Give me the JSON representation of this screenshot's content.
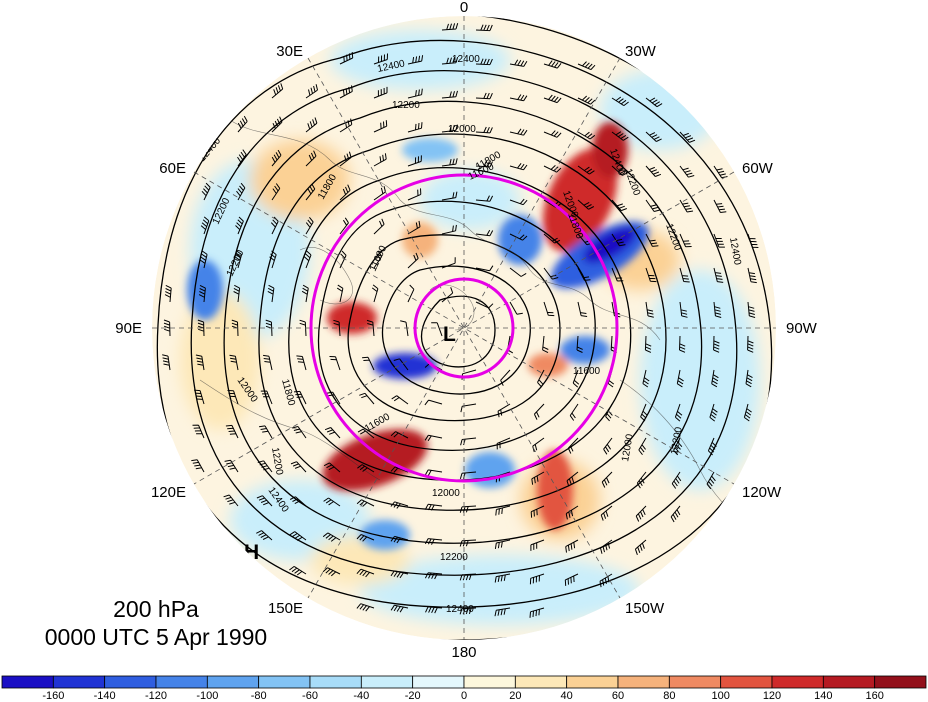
{
  "map": {
    "level_label": "200 hPa",
    "time_label": "0000 UTC 5 Apr 1990",
    "longitude_labels": [
      {
        "key": "lon-0",
        "text": "0"
      },
      {
        "key": "lon-30w",
        "text": "30W"
      },
      {
        "key": "lon-60w",
        "text": "60W"
      },
      {
        "key": "lon-90w",
        "text": "90W"
      },
      {
        "key": "lon-120w",
        "text": "120W"
      },
      {
        "key": "lon-150w",
        "text": "150W"
      },
      {
        "key": "lon-180",
        "text": "180"
      },
      {
        "key": "lon-150e",
        "text": "150E"
      },
      {
        "key": "lon-120e",
        "text": "120E"
      },
      {
        "key": "lon-90e",
        "text": "90E"
      },
      {
        "key": "lon-60e",
        "text": "60E"
      },
      {
        "key": "lon-30e",
        "text": "30E"
      }
    ],
    "contour_labels": [
      {
        "key": "c1",
        "text": "12400"
      },
      {
        "key": "c2",
        "text": "12400"
      },
      {
        "key": "c3",
        "text": "12200"
      },
      {
        "key": "c4",
        "text": "12000"
      },
      {
        "key": "c5",
        "text": "11800"
      },
      {
        "key": "c6",
        "text": "11800"
      },
      {
        "key": "c7",
        "text": "11600"
      },
      {
        "key": "c8",
        "text": "12200"
      },
      {
        "key": "c9",
        "text": "12200"
      },
      {
        "key": "c10",
        "text": "12400"
      },
      {
        "key": "c11",
        "text": "12400"
      },
      {
        "key": "c12",
        "text": "12200"
      },
      {
        "key": "c13",
        "text": "12000"
      },
      {
        "key": "c14",
        "text": "11800"
      },
      {
        "key": "c15",
        "text": "11600"
      },
      {
        "key": "c16",
        "text": "11600"
      },
      {
        "key": "c17",
        "text": "12000"
      },
      {
        "key": "c18",
        "text": "12200"
      },
      {
        "key": "c19",
        "text": "12000"
      },
      {
        "key": "c20",
        "text": "11800"
      },
      {
        "key": "c21",
        "text": "12200"
      },
      {
        "key": "c22",
        "text": "12400"
      },
      {
        "key": "c23",
        "text": "12400"
      },
      {
        "key": "c24",
        "text": "12200"
      },
      {
        "key": "c25",
        "text": "12400"
      },
      {
        "key": "c26",
        "text": "12000"
      },
      {
        "key": "c27",
        "text": "12200"
      },
      {
        "key": "c28",
        "text": "11600"
      }
    ],
    "centers": [
      {
        "key": "low",
        "text": "L"
      },
      {
        "key": "high",
        "text": "H"
      }
    ],
    "colorbar": {
      "tick_labels": [
        "-160",
        "-140",
        "-120",
        "-100",
        "-80",
        "-60",
        "-40",
        "-20",
        "0",
        "20",
        "40",
        "60",
        "80",
        "100",
        "120",
        "140",
        "160"
      ],
      "colors": [
        "#1a0fc4",
        "#2033d4",
        "#2f5ee0",
        "#4583e8",
        "#5fa3ef",
        "#83c3f4",
        "#a8dcf8",
        "#c9eefb",
        "#e4f7fc",
        "#fdf7dc",
        "#fde8b8",
        "#fbd195",
        "#f5b27c",
        "#ef8a62",
        "#e2543f",
        "#cf2a2a",
        "#b51a22",
        "#93101b"
      ]
    },
    "colors": {
      "contour": "#000000",
      "circle_overlay": "#e600e6",
      "background_fill": "#fdf4e0"
    }
  }
}
